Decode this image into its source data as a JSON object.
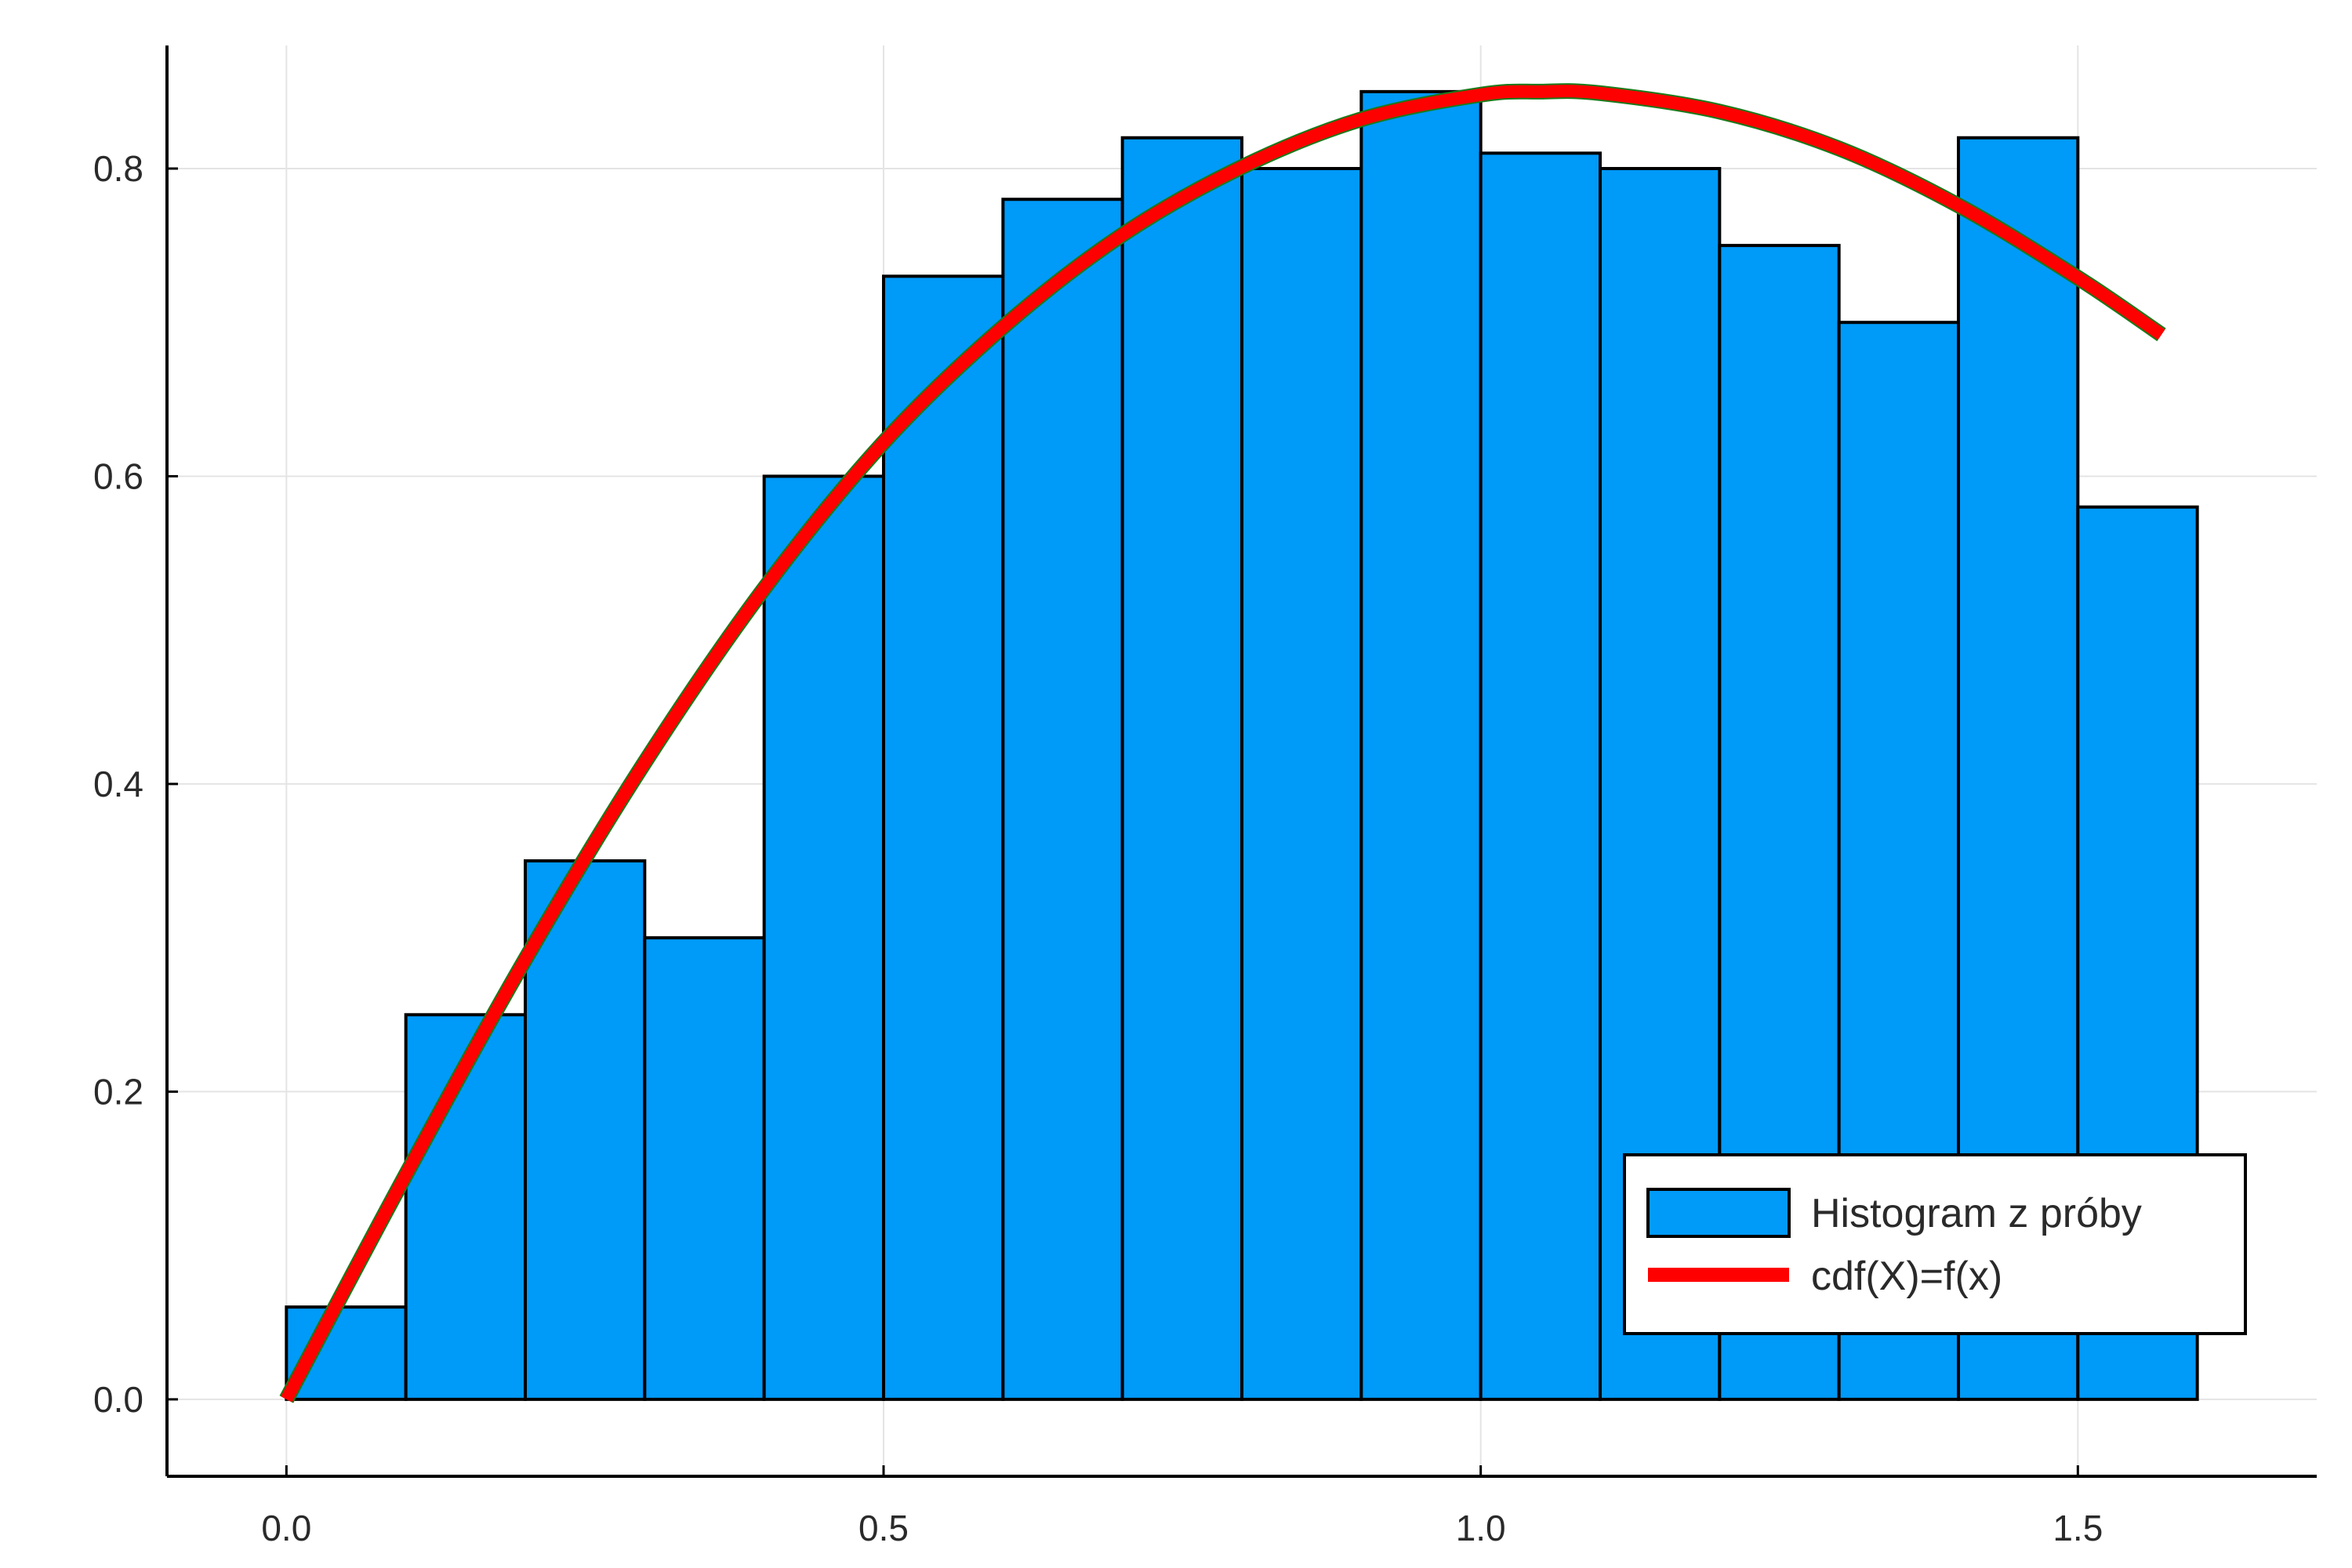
{
  "chart_data": {
    "type": "bar",
    "title": "",
    "xlabel": "",
    "ylabel": "",
    "xlim": [
      -0.1,
      1.7
    ],
    "ylim": [
      -0.05,
      0.88
    ],
    "grid": true,
    "legend_position": "bottom-right",
    "x_ticks": [
      {
        "value": 0.0,
        "label": "0.0"
      },
      {
        "value": 0.5,
        "label": "0.5"
      },
      {
        "value": 1.0,
        "label": "1.0"
      },
      {
        "value": 1.5,
        "label": "1.5"
      }
    ],
    "y_ticks": [
      {
        "value": 0.0,
        "label": "0.0"
      },
      {
        "value": 0.2,
        "label": "0.2"
      },
      {
        "value": 0.4,
        "label": "0.4"
      },
      {
        "value": 0.6,
        "label": "0.6"
      },
      {
        "value": 0.8,
        "label": "0.8"
      }
    ],
    "series": [
      {
        "name": "Histogram z próby",
        "kind": "histogram",
        "color": "#009af9",
        "bin_width": 0.1,
        "bin_starts": [
          0.0,
          0.1,
          0.2,
          0.3,
          0.4,
          0.5,
          0.6,
          0.7,
          0.8,
          0.9,
          1.0,
          1.1,
          1.2,
          1.3,
          1.4,
          1.5
        ],
        "values": [
          0.06,
          0.25,
          0.35,
          0.3,
          0.6,
          0.73,
          0.78,
          0.82,
          0.8,
          0.85,
          0.81,
          0.8,
          0.75,
          0.7,
          0.82,
          0.58
        ]
      },
      {
        "name": "cdf(X)=f(x)",
        "kind": "line",
        "color": "#ff0000",
        "outline_color": "#1a7a1a",
        "x": [
          0.0,
          0.1,
          0.2,
          0.3,
          0.4,
          0.5,
          0.6,
          0.7,
          0.8,
          0.9,
          1.0,
          1.05,
          1.1,
          1.2,
          1.3,
          1.4,
          1.5,
          1.57
        ],
        "y": [
          0.0,
          0.146,
          0.286,
          0.414,
          0.527,
          0.622,
          0.697,
          0.757,
          0.801,
          0.832,
          0.848,
          0.85,
          0.849,
          0.837,
          0.813,
          0.776,
          0.729,
          0.692
        ]
      }
    ]
  }
}
